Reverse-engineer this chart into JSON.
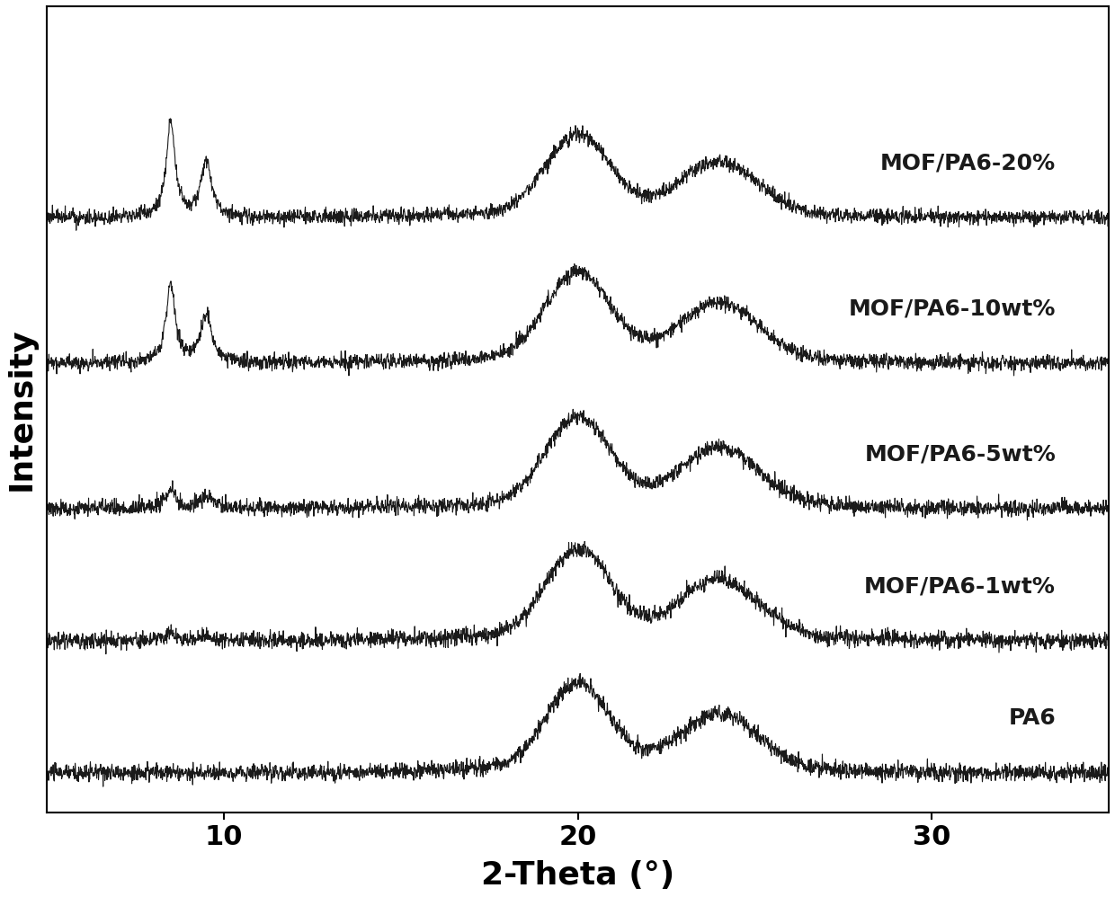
{
  "title": "",
  "xlabel": "2-Theta (°)",
  "ylabel": "Intensity",
  "xlim": [
    5,
    35
  ],
  "xticks": [
    10,
    20,
    30
  ],
  "line_color": "#1a1a1a",
  "background_color": "#ffffff",
  "labels": [
    "PA6",
    "MOF/PA6-1wt%",
    "MOF/PA6-5wt%",
    "MOF/PA6-10wt%",
    "MOF/PA6-20%"
  ],
  "offsets": [
    0,
    1.0,
    2.0,
    3.1,
    4.2
  ],
  "noise_scale": 0.04,
  "xlabel_fontsize": 26,
  "ylabel_fontsize": 26,
  "tick_fontsize": 22,
  "label_fontsize": 18
}
